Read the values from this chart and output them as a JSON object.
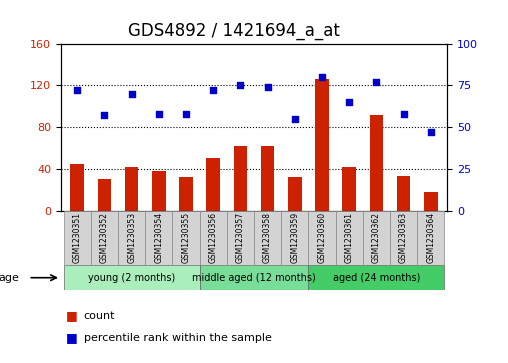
{
  "title": "GDS4892 / 1421694_a_at",
  "samples": [
    "GSM1230351",
    "GSM1230352",
    "GSM1230353",
    "GSM1230354",
    "GSM1230355",
    "GSM1230356",
    "GSM1230357",
    "GSM1230358",
    "GSM1230359",
    "GSM1230360",
    "GSM1230361",
    "GSM1230362",
    "GSM1230363",
    "GSM1230364"
  ],
  "counts": [
    45,
    30,
    42,
    38,
    32,
    50,
    62,
    62,
    32,
    126,
    42,
    92,
    33,
    18
  ],
  "percentiles": [
    72,
    57,
    70,
    58,
    58,
    72,
    75,
    74,
    55,
    80,
    65,
    77,
    58,
    47
  ],
  "groups": [
    {
      "label": "young (2 months)",
      "start": 0,
      "end": 5,
      "color": "#AAEEBB"
    },
    {
      "label": "middle aged (12 months)",
      "start": 5,
      "end": 9,
      "color": "#77DD99"
    },
    {
      "label": "aged (24 months)",
      "start": 9,
      "end": 14,
      "color": "#44CC66"
    }
  ],
  "ylim_left": [
    0,
    160
  ],
  "ylim_right": [
    0,
    100
  ],
  "yticks_left": [
    0,
    40,
    80,
    120,
    160
  ],
  "yticks_right": [
    0,
    25,
    50,
    75,
    100
  ],
  "bar_color": "#CC2200",
  "dot_color": "#0000CC",
  "bg_color": "#D3D3D3",
  "plot_bg": "#FFFFFF",
  "grid_color": "#000000",
  "title_fontsize": 12,
  "tick_fontsize": 8,
  "group_label_fontsize": 8
}
